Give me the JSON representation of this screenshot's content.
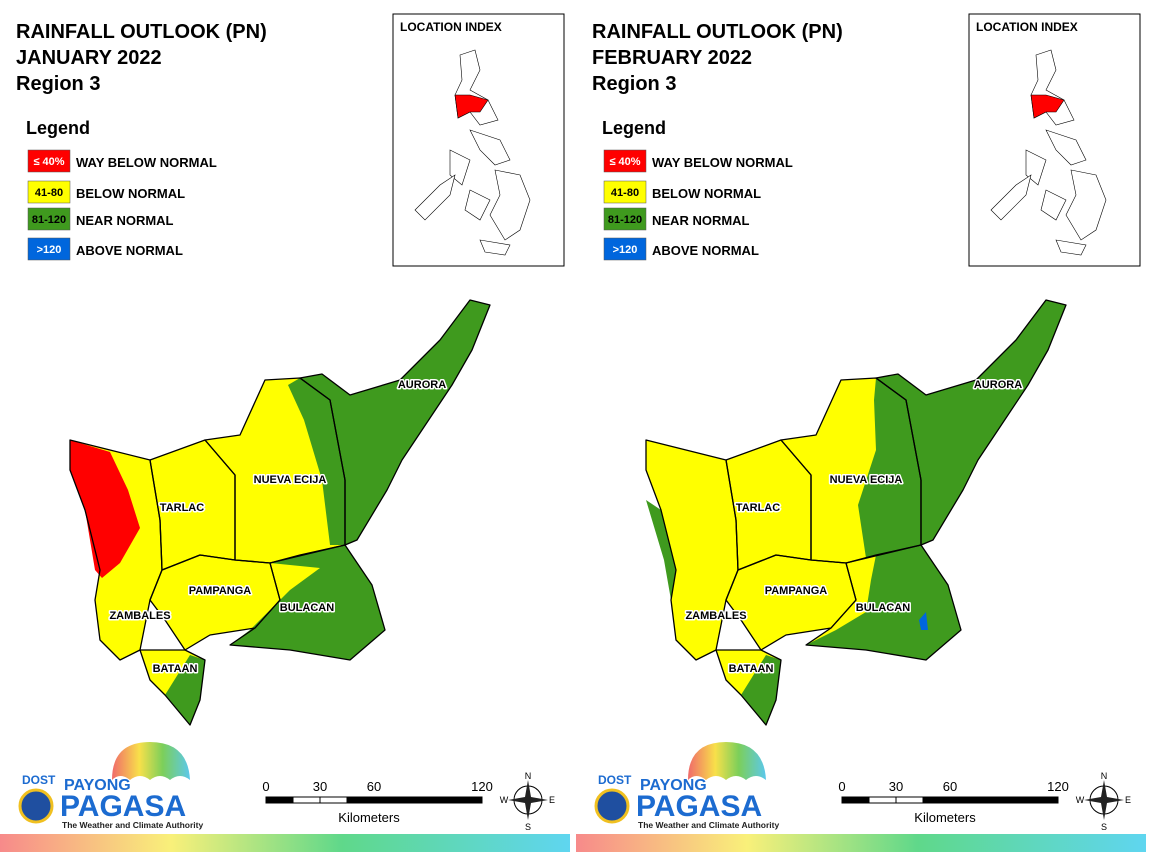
{
  "panels": [
    {
      "title": [
        "RAINFALL OUTLOOK (PN)",
        "JANUARY 2022",
        "Region 3"
      ],
      "legend": {
        "title": "Legend",
        "items": [
          {
            "range": "≤ 40%",
            "label": "WAY BELOW NORMAL"
          },
          {
            "range": "41-80",
            "label": "BELOW NORMAL"
          },
          {
            "range": "81-120",
            "label": "NEAR NORMAL"
          },
          {
            "range": ">120",
            "label": "ABOVE NORMAL"
          }
        ]
      },
      "location_index": "LOCATION INDEX",
      "provinces": [
        "AURORA",
        "NUEVA ECIJA",
        "TARLAC",
        "PAMPANGA",
        "ZAMBALES",
        "BULACAN",
        "BATAAN"
      ],
      "scale": {
        "ticks": [
          0,
          30,
          60,
          120
        ],
        "unit": "Kilometers"
      },
      "compass": [
        "N",
        "E",
        "S",
        "W"
      ],
      "logo": {
        "agency": "DOST",
        "brand_top": "PAYONG",
        "brand": "PAGASA",
        "tagline": "The Weather and Climate Authority"
      }
    },
    {
      "title": [
        "RAINFALL OUTLOOK (PN)",
        "FEBRUARY 2022",
        "Region 3"
      ],
      "legend": {
        "title": "Legend",
        "items": [
          {
            "range": "≤ 40%",
            "label": "WAY BELOW NORMAL"
          },
          {
            "range": "41-80",
            "label": "BELOW NORMAL"
          },
          {
            "range": "81-120",
            "label": "NEAR NORMAL"
          },
          {
            "range": ">120",
            "label": "ABOVE NORMAL"
          }
        ]
      },
      "location_index": "LOCATION INDEX",
      "provinces": [
        "AURORA",
        "NUEVA ECIJA",
        "TARLAC",
        "PAMPANGA",
        "ZAMBALES",
        "BULACAN",
        "BATAAN"
      ],
      "scale": {
        "ticks": [
          0,
          30,
          60,
          120
        ],
        "unit": "Kilometers"
      },
      "compass": [
        "N",
        "E",
        "S",
        "W"
      ],
      "logo": {
        "agency": "DOST",
        "brand_top": "PAYONG",
        "brand": "PAGASA",
        "tagline": "The Weather and Climate Authority"
      }
    }
  ]
}
